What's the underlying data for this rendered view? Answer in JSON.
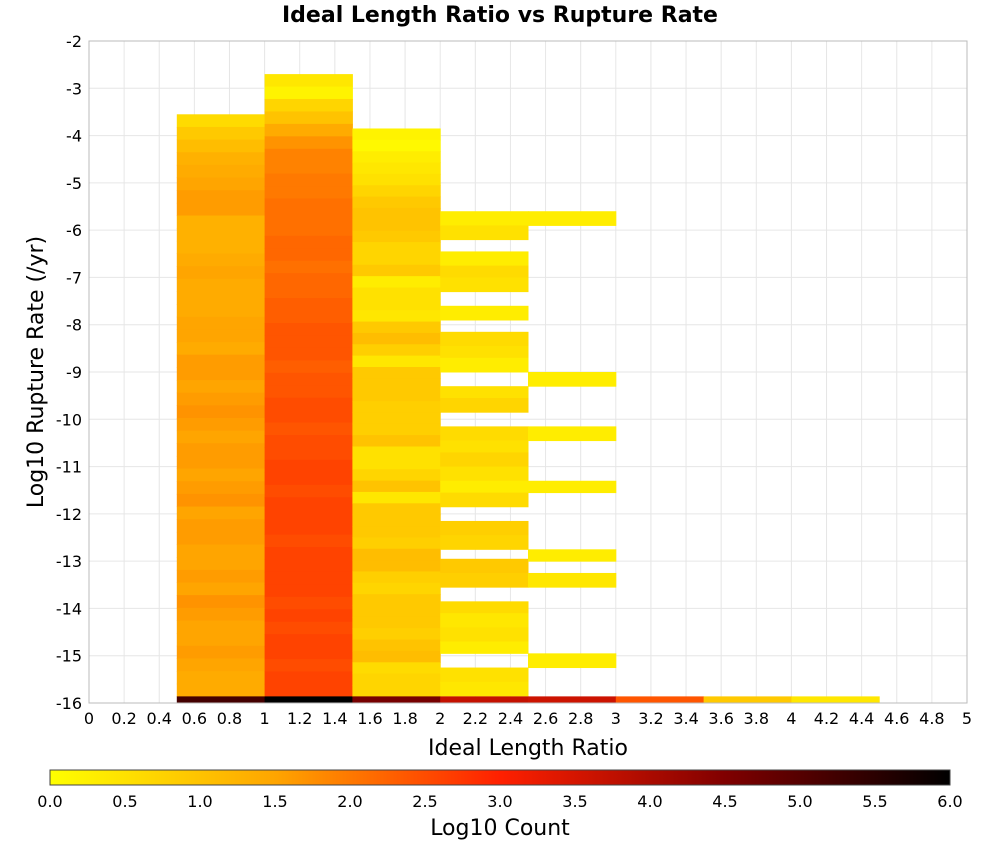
{
  "chart_data": {
    "type": "heatmap",
    "title": "Ideal Length Ratio vs Rupture Rate",
    "xlabel": "Ideal Length Ratio",
    "ylabel": "Log10 Rupture Rate (/yr)",
    "xlim": [
      0,
      5
    ],
    "ylim": [
      -16,
      -2
    ],
    "grid": true,
    "x_ticks": [
      "0",
      "0.2",
      "0.4",
      "0.6",
      "0.8",
      "1",
      "1.2",
      "1.4",
      "1.6",
      "1.8",
      "2",
      "2.2",
      "2.4",
      "2.6",
      "2.8",
      "3",
      "3.2",
      "3.4",
      "3.6",
      "3.8",
      "4",
      "4.2",
      "4.4",
      "4.6",
      "4.8",
      "5"
    ],
    "y_ticks": [
      "-2",
      "-3",
      "-4",
      "-5",
      "-6",
      "-7",
      "-8",
      "-9",
      "-10",
      "-11",
      "-12",
      "-13",
      "-14",
      "-15",
      "-16"
    ],
    "colorbar": {
      "label": "Log10 Count",
      "min": 0,
      "max": 6,
      "ticks": [
        "0.0",
        "0.5",
        "1.0",
        "1.5",
        "2.0",
        "2.5",
        "3.0",
        "3.5",
        "4.0",
        "4.5",
        "5.0",
        "5.5",
        "6.0"
      ],
      "colors": [
        "#ffff00",
        "#ffa500",
        "#ff2000",
        "#800000",
        "#000000"
      ]
    },
    "bin_width": 0.5,
    "columns": [
      {
        "x0": 0.5,
        "y_top": -3.55,
        "y_step": 0.285,
        "values": [
          0.6,
          0.9,
          1.1,
          1.3,
          1.4,
          1.5,
          1.6,
          1.6,
          1.3,
          1.3,
          1.3,
          1.4,
          1.5,
          1.4,
          1.4,
          1.4,
          1.5,
          1.5,
          1.4,
          1.6,
          1.6,
          1.5,
          1.6,
          1.7,
          1.6,
          1.5,
          1.6,
          1.6,
          1.5,
          1.6,
          1.7,
          1.5,
          1.6,
          1.6,
          1.5,
          1.5,
          1.6,
          1.5,
          1.7,
          1.6,
          1.5,
          1.5,
          1.6,
          1.5,
          1.4,
          1.4
        ],
        "bottom": 5.2
      },
      {
        "x0": 1.0,
        "y_top": -2.7,
        "y_step": 0.285,
        "values": [
          0.4,
          0.2,
          0.7,
          1.0,
          1.4,
          1.7,
          1.9,
          1.9,
          2.0,
          2.0,
          2.1,
          2.1,
          2.1,
          2.2,
          2.2,
          2.1,
          2.2,
          2.2,
          2.3,
          2.3,
          2.4,
          2.4,
          2.4,
          2.3,
          2.4,
          2.4,
          2.5,
          2.5,
          2.4,
          2.5,
          2.5,
          2.6,
          2.6,
          2.5,
          2.6,
          2.6,
          2.6,
          2.5,
          2.6,
          2.6,
          2.6,
          2.6,
          2.5,
          2.6,
          2.5,
          2.6,
          2.6,
          2.5,
          2.6,
          2.6
        ],
        "bottom": 6.0
      },
      {
        "x0": 1.5,
        "y_top": -3.85,
        "y_step": 0.285,
        "values": [
          0.2,
          0.1,
          0.3,
          0.4,
          0.5,
          0.7,
          0.9,
          1.0,
          1.0,
          0.9,
          0.7,
          0.7,
          0.9,
          0.3,
          0.5,
          0.5,
          0.4,
          0.9,
          1.1,
          0.8,
          0.4,
          0.9,
          0.9,
          0.9,
          0.8,
          0.8,
          0.8,
          1.0,
          0.5,
          0.5,
          0.7,
          1.0,
          0.4,
          0.9,
          0.9,
          0.9,
          0.8,
          1.1,
          1.1,
          0.8,
          0.7,
          0.9,
          0.9,
          0.9,
          0.8,
          1.0,
          1.1,
          0.6,
          0.7,
          0.7
        ],
        "bottom": 4.6
      },
      {
        "x0": 2.0,
        "y_top": -5.6,
        "segments": [
          [
            -5.6,
            -5.9,
            0.3
          ],
          [
            -5.9,
            -6.2,
            0.5
          ],
          [
            -6.45,
            -6.75,
            0.3
          ],
          [
            -6.75,
            -7.0,
            0.6
          ],
          [
            -7.0,
            -7.3,
            0.5
          ],
          [
            -7.6,
            -7.9,
            0.3
          ],
          [
            -8.15,
            -8.45,
            0.6
          ],
          [
            -8.45,
            -8.7,
            0.5
          ],
          [
            -8.7,
            -9.0,
            0.3
          ],
          [
            -9.3,
            -9.55,
            0.5
          ],
          [
            -9.55,
            -9.85,
            0.7
          ],
          [
            -10.15,
            -10.45,
            0.6
          ],
          [
            -10.45,
            -10.7,
            0.5
          ],
          [
            -10.7,
            -11.0,
            0.7
          ],
          [
            -11.0,
            -11.3,
            0.5
          ],
          [
            -11.3,
            -11.55,
            0.3
          ],
          [
            -11.55,
            -11.85,
            0.6
          ],
          [
            -12.15,
            -12.45,
            0.8
          ],
          [
            -12.45,
            -12.75,
            0.7
          ],
          [
            -12.95,
            -13.25,
            0.9
          ],
          [
            -13.25,
            -13.55,
            0.8
          ],
          [
            -13.85,
            -14.1,
            0.6
          ],
          [
            -14.1,
            -14.4,
            0.4
          ],
          [
            -14.4,
            -14.7,
            0.5
          ],
          [
            -14.7,
            -14.95,
            0.3
          ],
          [
            -15.25,
            -15.55,
            0.5
          ],
          [
            -15.55,
            -15.85,
            0.4
          ]
        ],
        "bottom": 3.7
      },
      {
        "x0": 2.5,
        "y_top": -5.6,
        "segments": [
          [
            -5.6,
            -5.9,
            0.3
          ],
          [
            -9.0,
            -9.3,
            0.3
          ],
          [
            -10.15,
            -10.45,
            0.3
          ],
          [
            -11.3,
            -11.55,
            0.3
          ],
          [
            -12.75,
            -13.0,
            0.3
          ],
          [
            -13.25,
            -13.55,
            0.4
          ],
          [
            -14.95,
            -15.25,
            0.3
          ]
        ],
        "bottom": 3.6
      },
      {
        "x0": 3.0,
        "segments": [],
        "bottom": 2.4
      },
      {
        "x0": 3.5,
        "segments": [],
        "bottom": 0.9
      },
      {
        "x0": 4.0,
        "segments": [],
        "bottom": 0.4
      }
    ]
  }
}
